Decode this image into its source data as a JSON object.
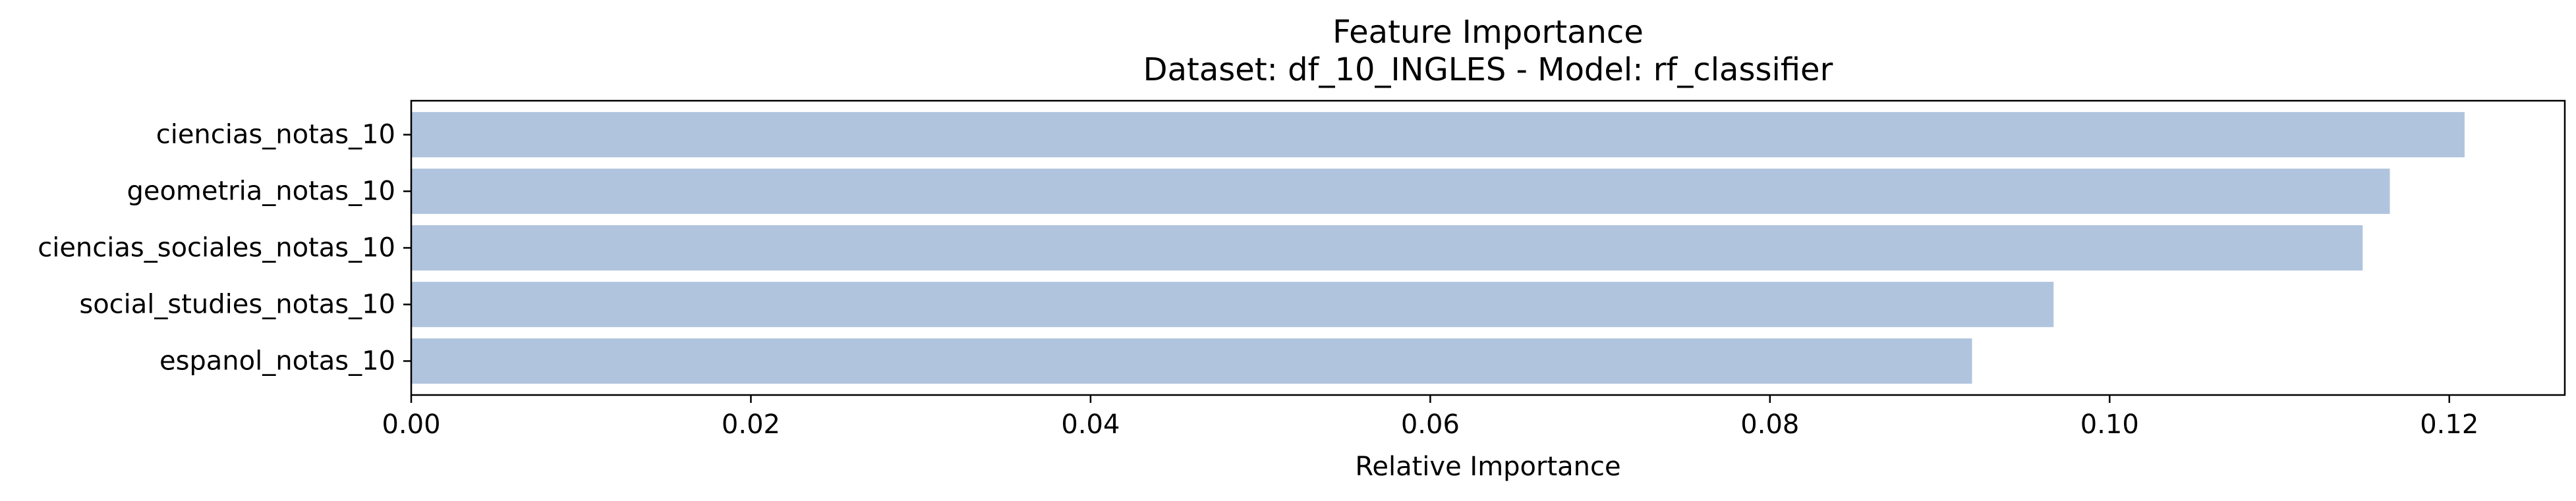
{
  "chart_data": {
    "type": "bar",
    "orientation": "horizontal",
    "title": "Feature Importance",
    "subtitle": "Dataset: df_10_INGLES  -  Model: rf_classifier",
    "xlabel": "Relative Importance",
    "ylabel": "",
    "categories": [
      "ciencias_notas_10",
      "geometria_notas_10",
      "ciencias_sociales_notas_10",
      "social_studies_notas_10",
      "espanol_notas_10"
    ],
    "values": [
      0.1209,
      0.1165,
      0.1149,
      0.0967,
      0.0919
    ],
    "xlim": [
      0.0,
      0.1268
    ],
    "xticks": [
      0.0,
      0.02,
      0.04,
      0.06,
      0.08,
      0.1,
      0.12
    ],
    "xtick_labels": [
      "0.00",
      "0.02",
      "0.04",
      "0.06",
      "0.08",
      "0.10",
      "0.12"
    ],
    "grid": false,
    "legend": "none",
    "colors": {
      "bar": "#b0c4de",
      "axis": "#000000"
    }
  }
}
